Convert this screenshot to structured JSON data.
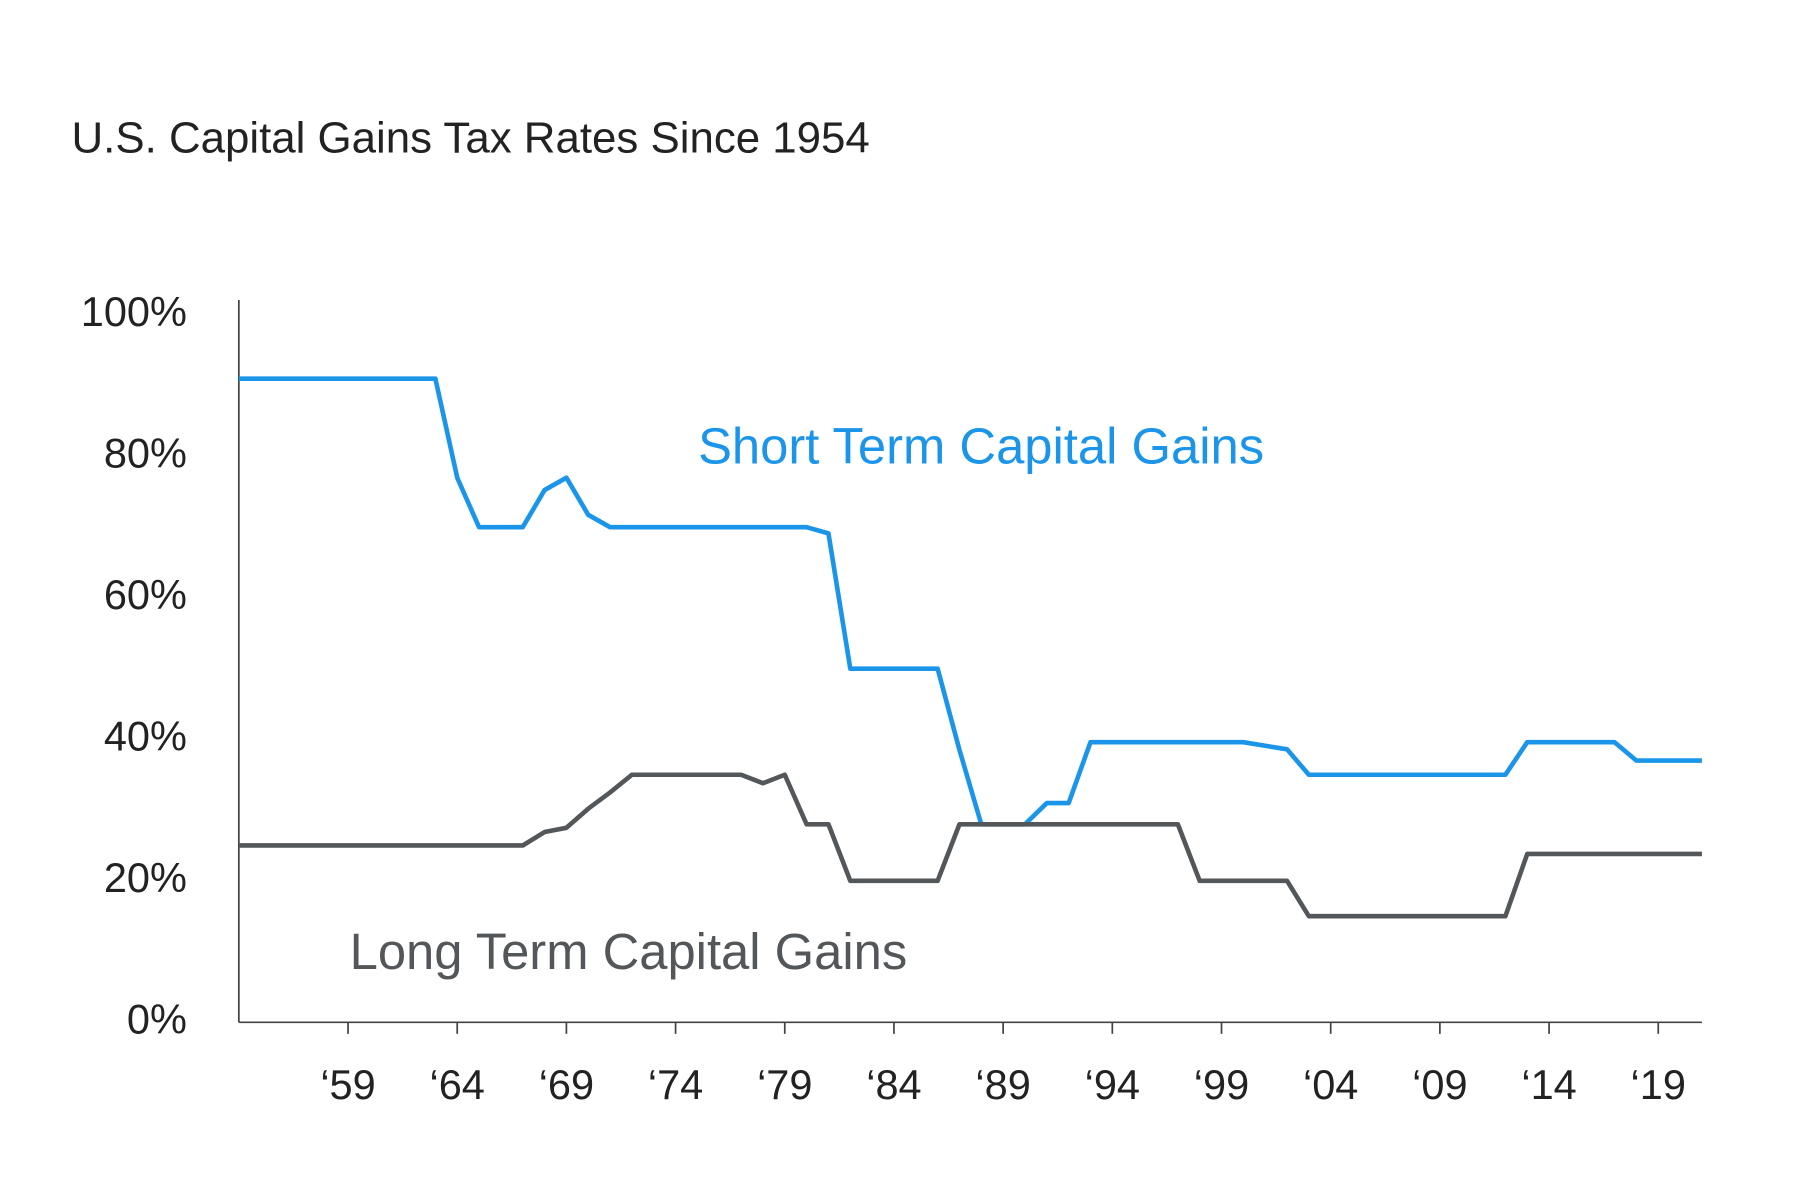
{
  "chart_data": {
    "type": "line",
    "title": "U.S. Capital Gains Tax Rates Since 1954",
    "x": [
      1954,
      1955,
      1956,
      1957,
      1958,
      1959,
      1960,
      1961,
      1962,
      1963,
      1964,
      1965,
      1966,
      1967,
      1968,
      1969,
      1970,
      1971,
      1972,
      1973,
      1974,
      1975,
      1976,
      1977,
      1978,
      1979,
      1980,
      1981,
      1982,
      1983,
      1984,
      1985,
      1986,
      1987,
      1988,
      1989,
      1990,
      1991,
      1992,
      1993,
      1994,
      1995,
      1996,
      1997,
      1998,
      1999,
      2000,
      2001,
      2002,
      2003,
      2004,
      2005,
      2006,
      2007,
      2008,
      2009,
      2010,
      2011,
      2012,
      2013,
      2014,
      2015,
      2016,
      2017,
      2018,
      2019,
      2020,
      2021
    ],
    "series": [
      {
        "name": "Short Term Capital Gains",
        "color": "#1b95e9",
        "values": [
          91,
          91,
          91,
          91,
          91,
          91,
          91,
          91,
          91,
          91,
          77,
          70,
          70,
          70,
          75.25,
          77,
          71.75,
          70,
          70,
          70,
          70,
          70,
          70,
          70,
          70,
          70,
          70,
          69.125,
          50,
          50,
          50,
          50,
          50,
          38.5,
          28,
          28,
          28,
          31,
          31,
          39.6,
          39.6,
          39.6,
          39.6,
          39.6,
          39.6,
          39.6,
          39.6,
          39.1,
          38.6,
          35,
          35,
          35,
          35,
          35,
          35,
          35,
          35,
          35,
          35,
          39.6,
          39.6,
          39.6,
          39.6,
          39.6,
          37,
          37,
          37,
          37
        ]
      },
      {
        "name": "Long Term Capital Gains",
        "color": "#54575a",
        "values": [
          25,
          25,
          25,
          25,
          25,
          25,
          25,
          25,
          25,
          25,
          25,
          25,
          25,
          25,
          26.9,
          27.5,
          30.2,
          32.5,
          35,
          35,
          35,
          35,
          35,
          35,
          33.8,
          35,
          28,
          28,
          20,
          20,
          20,
          20,
          20,
          28,
          28,
          28,
          28,
          28,
          28,
          28,
          28,
          28,
          28,
          28,
          20,
          20,
          20,
          20,
          20,
          15,
          15,
          15,
          15,
          15,
          15,
          15,
          15,
          15,
          15,
          23.8,
          23.8,
          23.8,
          23.8,
          23.8,
          23.8,
          23.8,
          23.8,
          23.8
        ]
      }
    ],
    "xlim": [
      1954,
      2021
    ],
    "xticks": [
      {
        "value": 1959,
        "label": "‘59"
      },
      {
        "value": 1964,
        "label": "‘64"
      },
      {
        "value": 1969,
        "label": "‘69"
      },
      {
        "value": 1974,
        "label": "‘74"
      },
      {
        "value": 1979,
        "label": "‘79"
      },
      {
        "value": 1984,
        "label": "‘84"
      },
      {
        "value": 1989,
        "label": "‘89"
      },
      {
        "value": 1994,
        "label": "‘94"
      },
      {
        "value": 1999,
        "label": "‘99"
      },
      {
        "value": 2004,
        "label": "‘04"
      },
      {
        "value": 2009,
        "label": "‘09"
      },
      {
        "value": 2014,
        "label": "‘14"
      },
      {
        "value": 2019,
        "label": "‘19"
      }
    ],
    "ylim": [
      0,
      100
    ],
    "yticks": [
      {
        "value": 0,
        "label": "0%"
      },
      {
        "value": 20,
        "label": "20%"
      },
      {
        "value": 40,
        "label": "40%"
      },
      {
        "value": 60,
        "label": "60%"
      },
      {
        "value": 80,
        "label": "80%"
      },
      {
        "value": 100,
        "label": "100%"
      }
    ]
  }
}
